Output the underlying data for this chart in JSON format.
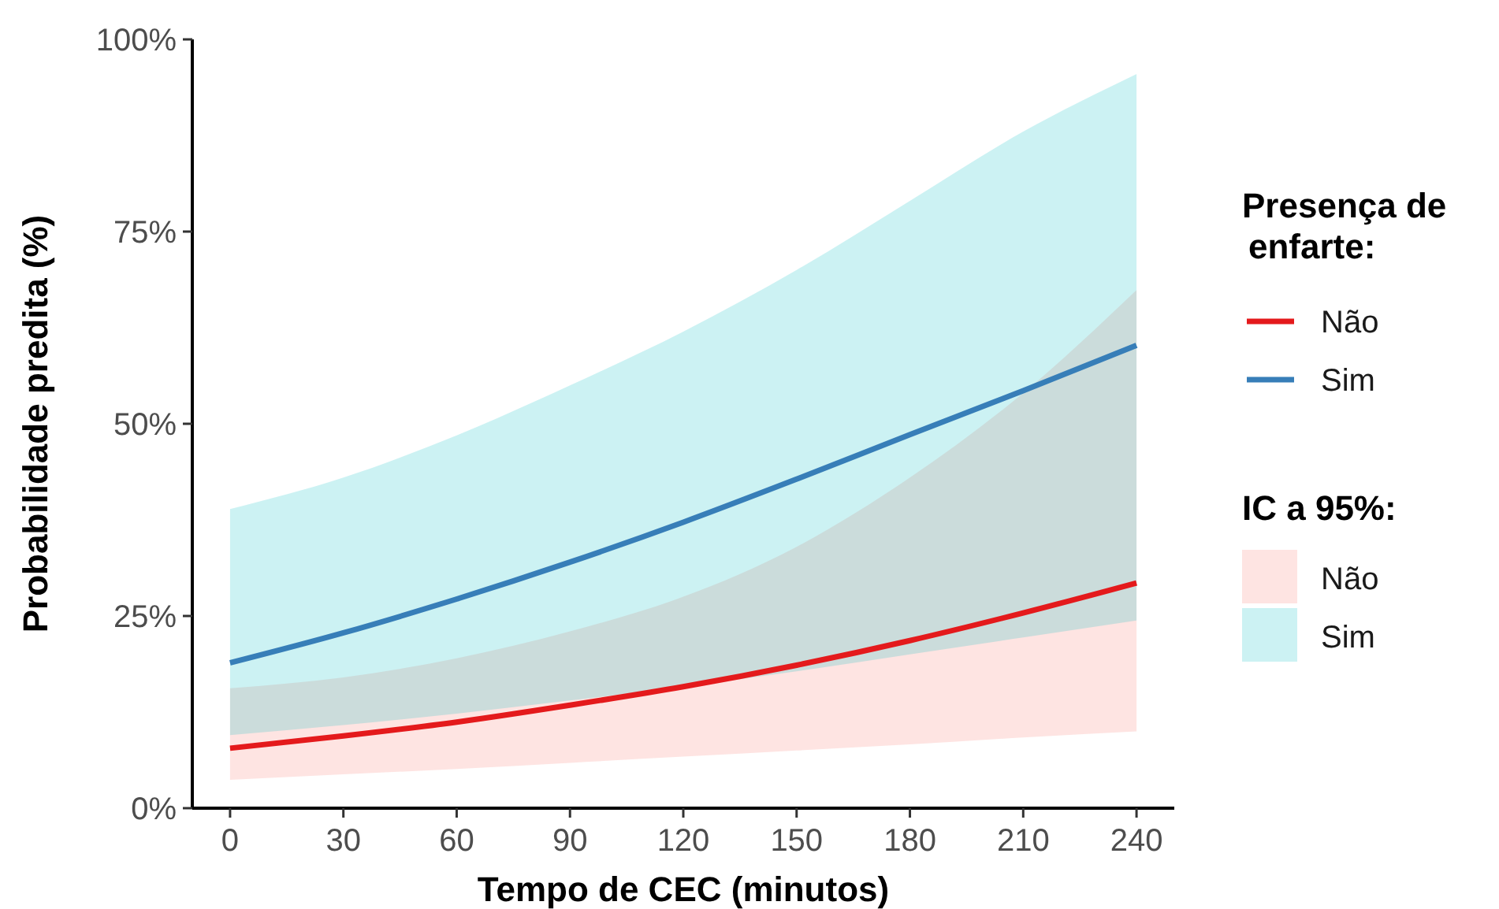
{
  "chart_data": {
    "type": "line",
    "xlabel": "Tempo de CEC (minutos)",
    "ylabel": "Probabilidade predita (%)",
    "legend_title": "Presença de enfarte:",
    "annotations": [
      "IC a 95%:"
    ],
    "x": [
      0,
      30,
      60,
      90,
      120,
      150,
      180,
      210,
      240
    ],
    "xlim": [
      -10,
      250
    ],
    "xticks": [
      0,
      30,
      60,
      90,
      120,
      150,
      180,
      210,
      240
    ],
    "ylim": [
      0,
      100
    ],
    "yticks": [
      {
        "value": 0,
        "label": "0%"
      },
      {
        "value": 25,
        "label": "25%"
      },
      {
        "value": 50,
        "label": "50%"
      },
      {
        "value": 75,
        "label": "75%"
      },
      {
        "value": 100,
        "label": "100%"
      }
    ],
    "grid": false,
    "legend": "right",
    "line_style": "solid",
    "marker": "none",
    "series": [
      {
        "type": "line",
        "name": "Não",
        "color": "#e41a1c",
        "values": [
          7.8,
          9.4,
          11.2,
          13.4,
          15.8,
          18.6,
          21.8,
          25.4,
          29.3
        ],
        "lower": [
          3.7,
          4.4,
          5.1,
          5.9,
          6.7,
          7.5,
          8.3,
          9.2,
          10
        ],
        "upper": [
          15.6,
          17,
          19.5,
          23,
          27.5,
          34,
          43,
          54,
          67.4
        ]
      },
      {
        "type": "line",
        "name": "Sim",
        "color": "#377eb8",
        "values": [
          18.9,
          22.8,
          27.2,
          32,
          37.2,
          42.8,
          48.6,
          54.3,
          60.2
        ],
        "lower": [
          9.5,
          10.8,
          12.3,
          14,
          15.8,
          17.8,
          20,
          22.2,
          24.4
        ],
        "upper": [
          38.9,
          43,
          48.5,
          55,
          62,
          70,
          79,
          88,
          95.5
        ]
      }
    ]
  }
}
